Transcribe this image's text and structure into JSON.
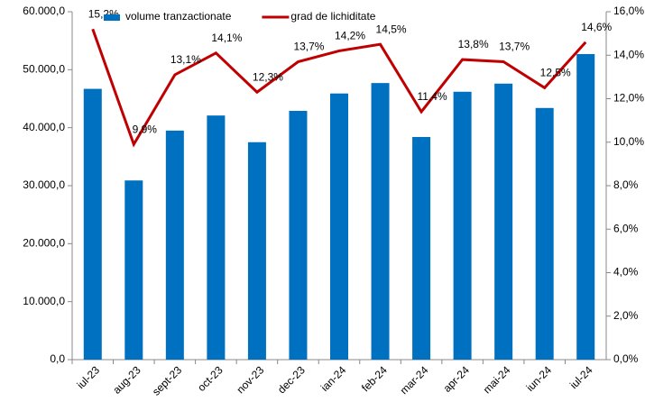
{
  "chart_data": {
    "type": "bar-line",
    "categories": [
      "iul-23",
      "aug-23",
      "sept-23",
      "oct-23",
      "nov-23",
      "dec-23",
      "ian-24",
      "feb-24",
      "mar-24",
      "apr-24",
      "mai-24",
      "iun-24",
      "iul-24"
    ],
    "series": [
      {
        "name": "volume tranzactionate",
        "color": "#0070c0",
        "type": "bar",
        "axis": "y",
        "values": [
          46700,
          30900,
          39500,
          42100,
          37500,
          42900,
          45900,
          47700,
          38400,
          46200,
          47600,
          43400,
          52700
        ]
      },
      {
        "name": "grad de lichiditate",
        "color": "#c00000",
        "type": "line",
        "axis": "y2",
        "values": [
          15.2,
          9.9,
          13.1,
          14.1,
          12.3,
          13.7,
          14.2,
          14.5,
          11.4,
          13.8,
          13.7,
          12.5,
          14.6
        ],
        "value_labels": [
          "15,2%",
          "9,9%",
          "13,1%",
          "14,1%",
          "12,3%",
          "13,7%",
          "14,2%",
          "14,5%",
          "11,4%",
          "13,8%",
          "13,7%",
          "12,5%",
          "14,6%"
        ]
      }
    ],
    "ylim": [
      0,
      60000
    ],
    "yticks": [
      {
        "value": 0,
        "label": "0,0"
      },
      {
        "value": 10000,
        "label": "10.000,0"
      },
      {
        "value": 20000,
        "label": "20.000,0"
      },
      {
        "value": 30000,
        "label": "30.000,0"
      },
      {
        "value": 40000,
        "label": "40.000,0"
      },
      {
        "value": 50000,
        "label": "50.000,0"
      },
      {
        "value": 60000,
        "label": "60.000,0"
      }
    ],
    "y2lim": [
      0,
      16
    ],
    "y2ticks": [
      {
        "value": 0,
        "label": "0,0%"
      },
      {
        "value": 2,
        "label": "2,0%"
      },
      {
        "value": 4,
        "label": "4,0%"
      },
      {
        "value": 6,
        "label": "6,0%"
      },
      {
        "value": 8,
        "label": "8,0%"
      },
      {
        "value": 10,
        "label": "10,0%"
      },
      {
        "value": 12,
        "label": "12,0%"
      },
      {
        "value": 14,
        "label": "14,0%"
      },
      {
        "value": 16,
        "label": "16,0%"
      }
    ],
    "legend": "top"
  }
}
